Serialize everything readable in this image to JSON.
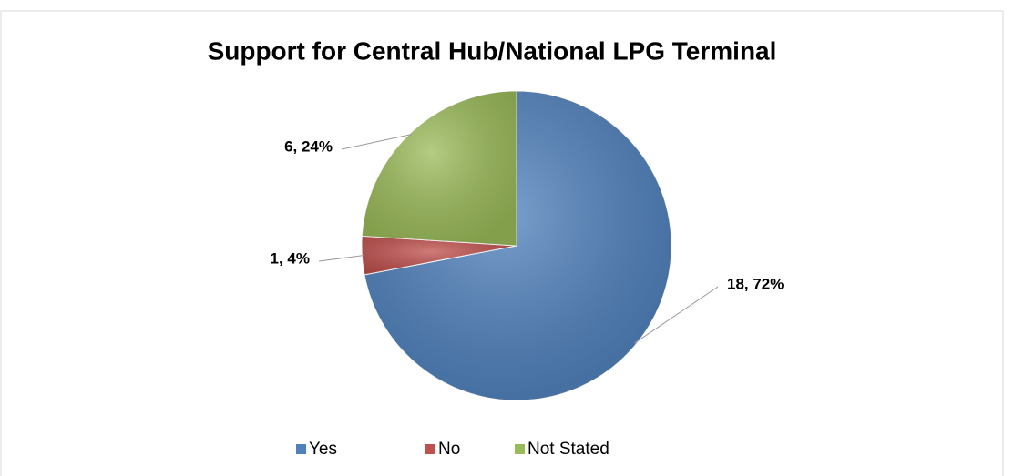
{
  "chart_data": {
    "type": "pie",
    "title": "Support for Central Hub/National LPG Terminal",
    "categories": [
      "Yes",
      "No",
      "Not Stated"
    ],
    "values": [
      18,
      1,
      6
    ],
    "value_labels": [
      "18, 72%",
      "1, 4%",
      "6, 24%"
    ],
    "colors": [
      "#4f81bd",
      "#c0504d",
      "#9bbb59"
    ],
    "legend": "bottom"
  }
}
